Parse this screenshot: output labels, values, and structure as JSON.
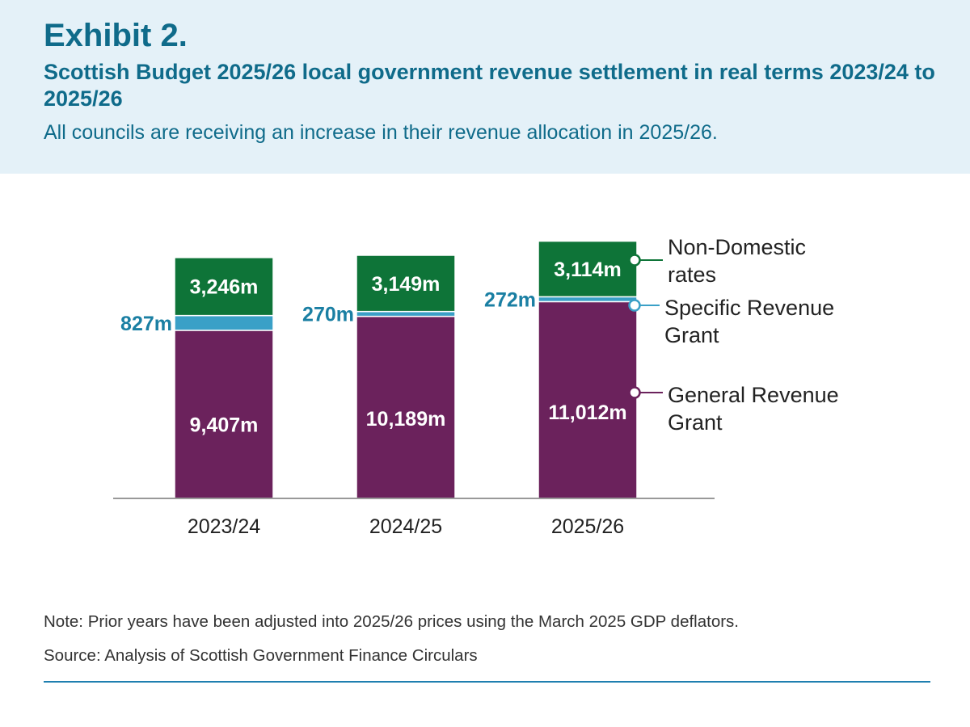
{
  "header": {
    "exhibit": "Exhibit 2.",
    "title": "Scottish Budget 2025/26 local government revenue settlement in real terms 2023/24 to 2025/26",
    "subtitle": "All councils are receiving an increase in their revenue allocation in 2025/26."
  },
  "footer": {
    "note": "Note: Prior years have been adjusted into 2025/26 prices using the March 2025 GDP deflators.",
    "source": "Source: Analysis of Scottish Government Finance Circulars"
  },
  "chart_data": {
    "type": "bar",
    "stacked": true,
    "categories": [
      "2023/24",
      "2024/25",
      "2025/26"
    ],
    "unit_suffix": "m",
    "series": [
      {
        "name": "General Revenue Grant",
        "values": [
          9407,
          10189,
          11012
        ],
        "color": "#6b225c",
        "label_color": "#ffffff",
        "labels": [
          "9,407m",
          "10,189m",
          "11,012m"
        ]
      },
      {
        "name": "Specific Revenue Grant",
        "values": [
          827,
          270,
          272
        ],
        "color": "#3aa0c7",
        "label_color": "#1a7fa3",
        "labels": [
          "827m",
          "270m",
          "272m"
        ]
      },
      {
        "name": "Non-Domestic rates",
        "values": [
          3246,
          3149,
          3114
        ],
        "color": "#0e7438",
        "label_color": "#ffffff",
        "labels": [
          "3,246m",
          "3,149m",
          "3,114m"
        ]
      }
    ],
    "legend": [
      {
        "lines": [
          "Non-Domestic",
          "rates"
        ],
        "color": "#0e7438"
      },
      {
        "lines": [
          "Specific Revenue",
          "Grant"
        ],
        "color": "#3aa0c7"
      },
      {
        "lines": [
          "General Revenue",
          "Grant"
        ],
        "color": "#6b225c"
      }
    ],
    "legend_placement": "right",
    "ylim": [
      0,
      15500
    ],
    "grid": false
  }
}
